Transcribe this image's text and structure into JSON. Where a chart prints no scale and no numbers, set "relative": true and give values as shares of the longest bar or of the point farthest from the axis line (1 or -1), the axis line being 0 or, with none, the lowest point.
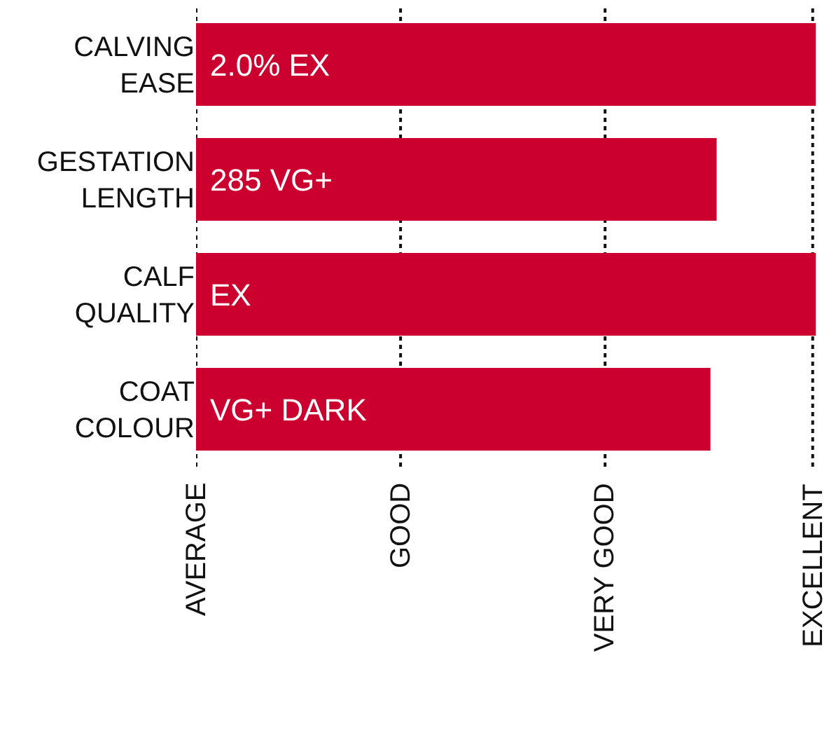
{
  "chart_data": {
    "type": "bar",
    "orientation": "horizontal",
    "relative": true,
    "categories": [
      "CALVING\nEASE",
      "GESTATION\nLENGTH",
      "CALF\nQUALITY",
      "COAT\nCOLOUR"
    ],
    "values": [
      1,
      0.84,
      1,
      0.83
    ],
    "annotations": [
      "2.0% EX",
      "285 VG+",
      "EX",
      "VG+ DARK"
    ],
    "color": "#cc002e",
    "ref_lines": [
      {
        "axis": "x",
        "value": 0,
        "label": "AVERAGE",
        "line_style": "dotted",
        "color": "#111111"
      },
      {
        "axis": "x",
        "value": 0.33,
        "label": "GOOD",
        "line_style": "dotted",
        "color": "#111111"
      },
      {
        "axis": "x",
        "value": 0.66,
        "label": "VERY GOOD",
        "line_style": "dotted",
        "color": "#111111"
      },
      {
        "axis": "x",
        "value": 0.995,
        "label": "EXCELLENT",
        "line_style": "dotted",
        "color": "#111111"
      }
    ],
    "legend": false
  }
}
